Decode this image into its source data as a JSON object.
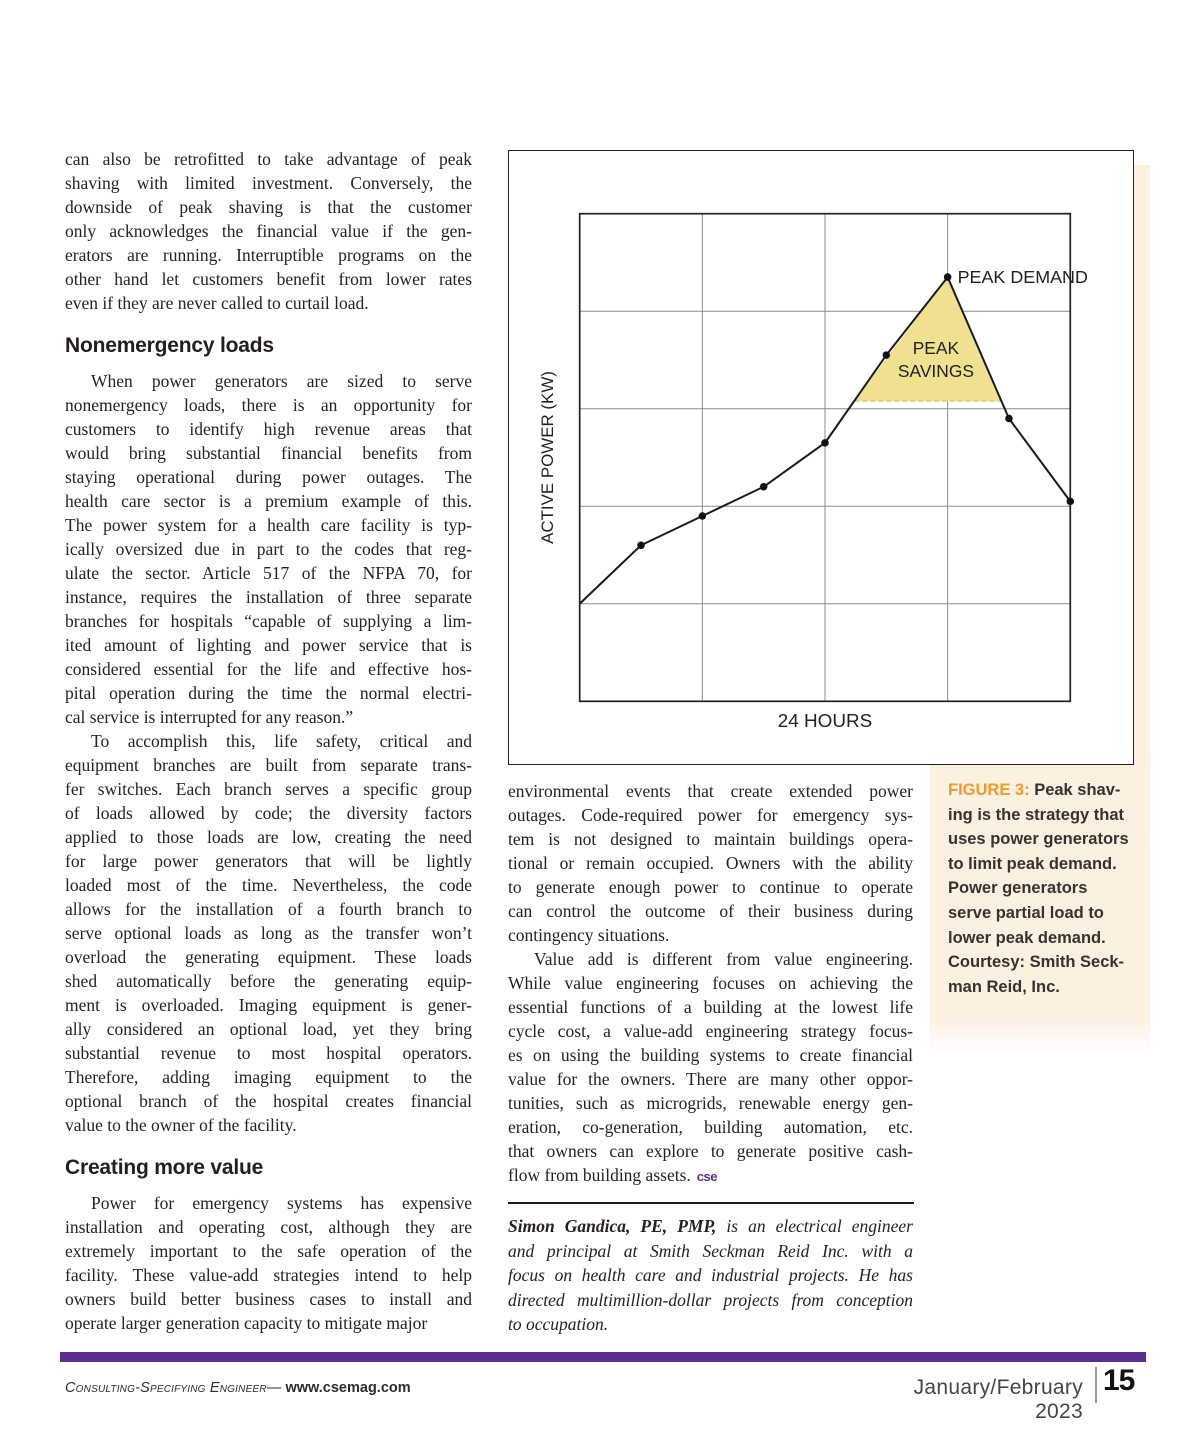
{
  "colors": {
    "purple": "#5e2d91",
    "orange": "#ee9a2d",
    "cream": "#fcf0e1",
    "triangle_fill": "#f0e191",
    "triangle_edge": "#ddc87a",
    "ink": "#231f20"
  },
  "article": {
    "left_column": [
      {
        "kind": "para",
        "indent": false,
        "lines": [
          "can also be retrofitted to take advantage of peak",
          "shaving with limited investment. Conversely, the",
          "downside of peak shaving is that the customer",
          "only acknowledges the financial value if the gen-",
          "erators are running. Interruptible programs on the",
          "other hand let customers benefit from lower rates",
          "even if they are never called to curtail load."
        ]
      },
      {
        "kind": "heading",
        "text": "Nonemergency loads"
      },
      {
        "kind": "para",
        "indent": true,
        "lines": [
          "When power generators are sized to serve",
          "nonemergency loads, there is an opportunity for",
          "customers to identify high revenue areas that",
          "would bring substantial financial benefits from",
          "staying operational during power outages. The",
          "health care sector is a premium example of this.",
          "The power system for a health care facility is typ-",
          "ically oversized due in part to the codes that reg-",
          "ulate the sector. Article 517 of the NFPA 70, for",
          "instance, requires the installation of three separate",
          "branches for hospitals “capable of supplying a lim-",
          "ited amount of lighting and power service that is",
          "considered essential for the life and effective hos-",
          "pital operation during the time the normal electri-",
          "cal service is interrupted for any reason.”"
        ]
      },
      {
        "kind": "para",
        "indent": true,
        "lines": [
          "To accomplish this, life safety, critical and",
          "equipment branches are built from separate trans-",
          "fer switches. Each branch serves a specific group",
          "of loads allowed by code; the diversity factors",
          "applied to those loads are low, creating the need",
          "for large power generators that will be lightly",
          "loaded most of the time. Nevertheless, the code",
          "allows for the installation of a fourth branch to",
          "serve optional loads as long as the transfer won’t",
          "overload the generating equipment. These loads",
          "shed automatically before the generating equip-",
          "ment is overloaded. Imaging equipment is gener-",
          "ally considered an optional load, yet they bring",
          "substantial revenue to most hospital operators.",
          "Therefore, adding imaging equipment to the",
          "optional branch of the hospital creates financial",
          "value to the owner of the facility."
        ]
      },
      {
        "kind": "heading",
        "text": "Creating more value"
      },
      {
        "kind": "para",
        "indent": true,
        "lines": [
          "Power for emergency systems has expensive",
          "installation and operating cost, although they are",
          "extremely important to the safe operation of the",
          "facility. These value-add strategies intend to help",
          "owners build better business cases to install and",
          "operate larger generation capacity to mitigate major"
        ]
      }
    ],
    "middle_column": [
      {
        "kind": "para",
        "indent": false,
        "lines": [
          "environmental events that create extended power",
          "outages. Code-required power for emergency sys-",
          "tem is not designed to maintain buildings opera-",
          "tional or remain occupied. Owners with the ability",
          "to generate enough power to continue to operate",
          "can control the outcome of their business during",
          "contingency situations."
        ]
      },
      {
        "kind": "para",
        "indent": true,
        "end_mark": "cse",
        "lines": [
          "Value add is different from value engineering.",
          "While value engineering focuses on achieving the",
          "essential functions of a building at the lowest life",
          "cycle cost, a value-add engineering strategy focus-",
          "es on using the building systems to create financial",
          "value for the owners. There are many other oppor-",
          "tunities, such as microgrids, renewable energy gen-",
          "eration, co-generation, building automation, etc.",
          "that owners can explore to generate positive cash-",
          "flow from building assets."
        ]
      }
    ],
    "bio": {
      "lead_bold": "Simon Gandica, PE, PMP,",
      "lines": [
        "is an electrical engineer",
        "and principal at Smith Seckman Reid Inc. with a",
        "focus on health care and industrial projects. He has",
        "directed multimillion-dollar projects from conception",
        "to occupation."
      ]
    }
  },
  "figure_caption": {
    "prefix": "FIGURE 3:",
    "lines": [
      "Peak shav-",
      "ing is the strategy that",
      "uses power generators",
      "to limit peak demand.",
      "Power generators",
      "serve partial load to",
      "lower peak demand.",
      "Courtesy: Smith Seck-",
      "man Reid, Inc."
    ]
  },
  "chart_data": {
    "type": "line",
    "title": "",
    "xlabel": "24 HOURS",
    "ylabel": "ACTIVE POWER (KW)",
    "peak_label": "PEAK DEMAND",
    "savings_label_lines": [
      "PEAK",
      "SAVINGS"
    ],
    "x_hours": [
      0,
      3,
      6,
      9,
      12,
      15,
      18,
      21,
      24
    ],
    "values_rel": [
      1.0,
      1.6,
      1.9,
      2.2,
      2.65,
      3.55,
      4.35,
      2.9,
      2.05
    ],
    "markers": [
      false,
      true,
      true,
      true,
      true,
      true,
      true,
      true,
      true
    ],
    "shaved_level_rel": 3.08,
    "ylim": [
      0,
      5
    ],
    "x_gridline_hours": [
      6,
      12,
      18
    ],
    "y_gridline_levels": [
      1,
      2,
      3,
      4
    ],
    "grid": true,
    "legend": "none"
  },
  "footer": {
    "magazine": "Consulting-Specifying Engineer—",
    "url": "www.csemag.com",
    "issue": "January/February 2023",
    "page_number": "15"
  }
}
